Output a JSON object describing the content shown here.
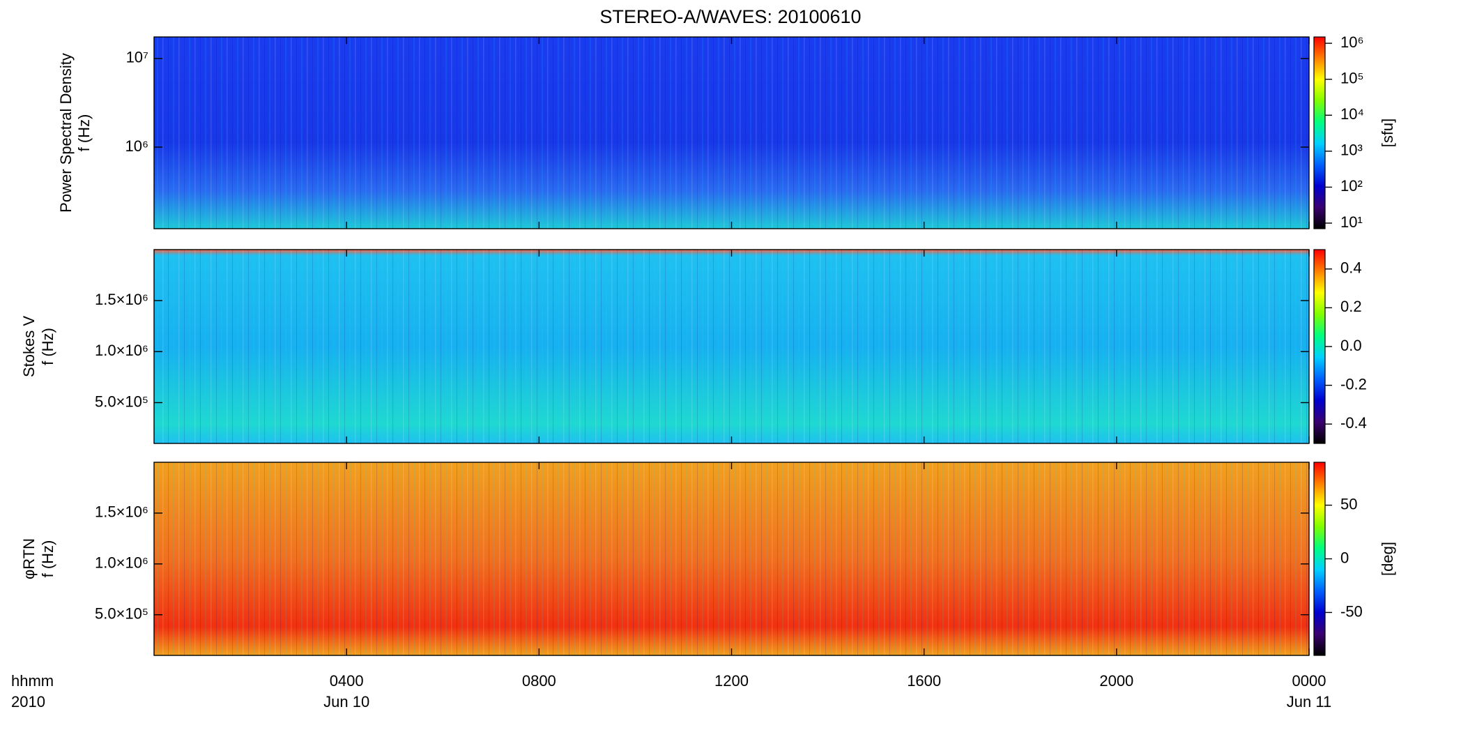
{
  "title": "STEREO-A/WAVES: 20100610",
  "chart_data": [
    {
      "type": "heatmap",
      "ylabel": [
        "Power Spectral Density",
        "f (Hz)"
      ],
      "ylog": true,
      "ylim": [
        120000,
        17500000
      ],
      "yticks": [
        {
          "value": 1000000,
          "label": "10⁶"
        },
        {
          "value": 10000000,
          "label": "10⁷"
        }
      ],
      "colorbar": {
        "label": "[sfu]",
        "log": true,
        "lim": [
          7,
          1500000
        ],
        "ticks": [
          {
            "value": 10,
            "label": "10¹"
          },
          {
            "value": 100,
            "label": "10²"
          },
          {
            "value": 1000,
            "label": "10³"
          },
          {
            "value": 10000,
            "label": "10⁴"
          },
          {
            "value": 100000,
            "label": "10⁵"
          },
          {
            "value": 1000000,
            "label": "10⁶"
          }
        ],
        "colors": [
          "#000000",
          "#3a0070",
          "#0000d0",
          "#0060ff",
          "#00d0ff",
          "#00ff80",
          "#80ff00",
          "#ffff00",
          "#ff8000",
          "#ff0000"
        ]
      }
    },
    {
      "type": "heatmap",
      "ylabel": [
        "Stokes V",
        "f (Hz)"
      ],
      "ylog": false,
      "ylim": [
        100000,
        2000000
      ],
      "yticks": [
        {
          "value": 500000,
          "label": "5.0×10⁵"
        },
        {
          "value": 1000000,
          "label": "1.0×10⁶"
        },
        {
          "value": 1500000,
          "label": "1.5×10⁶"
        }
      ],
      "colorbar": {
        "log": false,
        "lim": [
          -0.5,
          0.5
        ],
        "ticks": [
          -0.4,
          -0.2,
          {
            "value": 0,
            "label": "0.0"
          },
          0.2,
          0.4
        ],
        "colors": [
          "#000000",
          "#3a0070",
          "#0000d0",
          "#0060ff",
          "#00d0ff",
          "#00ff80",
          "#80ff00",
          "#ffff00",
          "#ff8000",
          "#ff0000"
        ]
      }
    },
    {
      "type": "heatmap",
      "ylabel": [
        "φRTN",
        "f (Hz)"
      ],
      "ylog": false,
      "ylim": [
        100000,
        2000000
      ],
      "yticks": [
        {
          "value": 500000,
          "label": "5.0×10⁵"
        },
        {
          "value": 1000000,
          "label": "1.0×10⁶"
        },
        {
          "value": 1500000,
          "label": "1.5×10⁶"
        }
      ],
      "colorbar": {
        "label": "[deg]",
        "log": false,
        "lim": [
          -90,
          90
        ],
        "ticks": [
          -50,
          0,
          50
        ],
        "colors": [
          "#000000",
          "#3a0070",
          "#0000d0",
          "#0060ff",
          "#00d0ff",
          "#00ff80",
          "#80ff00",
          "#ffff00",
          "#ff8000",
          "#ff0000"
        ]
      },
      "xlabel": [
        "hhmm",
        "2010"
      ],
      "xlim": [
        0,
        24
      ],
      "xticks": [
        {
          "value": 4,
          "label": "0400"
        },
        {
          "value": 8,
          "label": "0800"
        },
        {
          "value": 12,
          "label": "1200"
        },
        {
          "value": 16,
          "label": "1600"
        },
        {
          "value": 20,
          "label": "2000"
        },
        {
          "value": 24,
          "label": "0000"
        }
      ],
      "xdates": [
        {
          "value": 4,
          "label": "Jun 10"
        },
        {
          "value": 24,
          "label": "Jun 11"
        }
      ]
    }
  ]
}
